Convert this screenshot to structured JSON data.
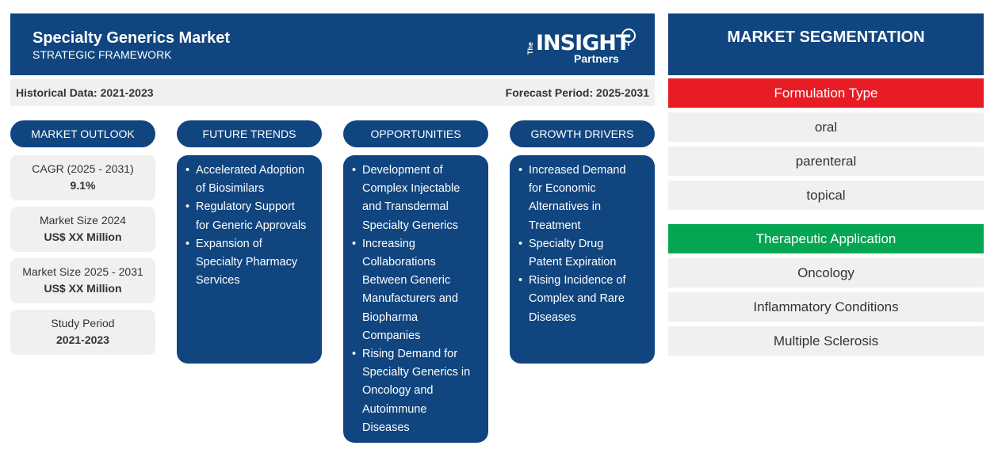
{
  "header": {
    "title": "Specialty Generics Market",
    "subtitle": "STRATEGIC FRAMEWORK",
    "logo": {
      "the": "The",
      "insight": "INSIGHT",
      "partners": "Partners"
    }
  },
  "periods": {
    "historical": "Historical Data: 2021-2023",
    "forecast": "Forecast Period: 2025-2031"
  },
  "outlook": {
    "heading": "MARKET OUTLOOK",
    "stats": [
      {
        "label": "CAGR (2025 - 2031)",
        "value": "9.1%"
      },
      {
        "label": "Market Size 2024",
        "value": "US$ XX Million"
      },
      {
        "label": "Market Size 2025 - 2031",
        "value": "US$ XX Million"
      },
      {
        "label": "Study Period",
        "value": "2021-2023"
      }
    ]
  },
  "trends": {
    "heading": "FUTURE TRENDS",
    "items": [
      [
        "Accelerated Adoption",
        "of Biosimilars"
      ],
      [
        "Regulatory Support",
        "for Generic Approvals"
      ],
      [
        "Expansion of",
        "Specialty Pharmacy",
        "Services"
      ]
    ]
  },
  "opportunities": {
    "heading": "OPPORTUNITIES",
    "items": [
      [
        "Development of",
        "Complex Injectable",
        "and Transdermal",
        "Specialty Generics"
      ],
      [
        "Increasing",
        "Collaborations",
        "Between Generic",
        "Manufacturers and",
        "Biopharma",
        "Companies"
      ],
      [
        "Rising Demand for",
        "Specialty Generics in",
        "Oncology and",
        "Autoimmune",
        "Diseases"
      ]
    ]
  },
  "drivers": {
    "heading": "GROWTH DRIVERS",
    "items": [
      [
        "Increased Demand",
        "for Economic",
        "Alternatives in",
        "Treatment"
      ],
      [
        "Specialty Drug",
        "Patent Expiration"
      ],
      [
        "Rising Incidence of",
        "Complex and Rare",
        "Diseases"
      ]
    ]
  },
  "segmentation": {
    "heading": "MARKET SEGMENTATION",
    "groups": [
      {
        "title": "Formulation Type",
        "color": "#e81c24",
        "items": [
          "oral",
          "parenteral",
          "topical"
        ]
      },
      {
        "title": "Therapeutic Application",
        "color": "#05a651",
        "items": [
          "Oncology",
          "Inflammatory Conditions",
          "Multiple Sclerosis"
        ]
      }
    ]
  },
  "colors": {
    "navy": "#10457f",
    "light_gray": "#f0f0f0"
  }
}
